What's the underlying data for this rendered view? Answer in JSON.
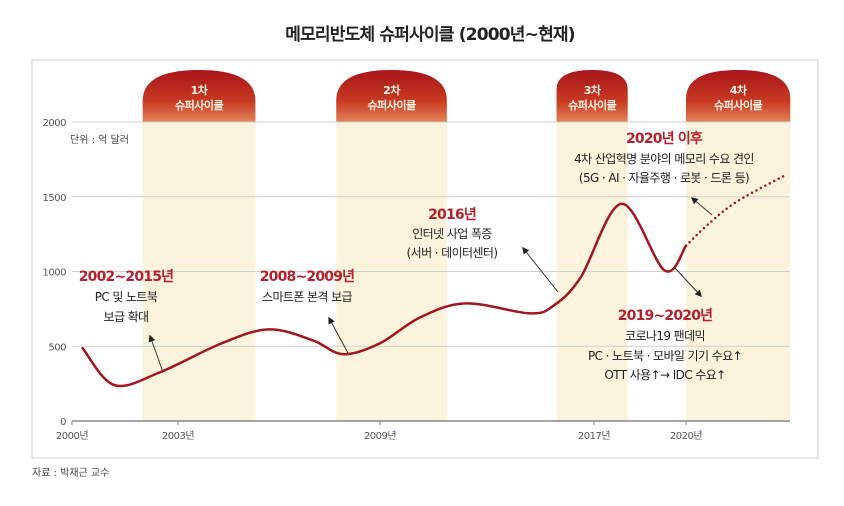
{
  "chart_data": {
    "type": "line",
    "title": "메모리반도체 슈퍼사이클 (2000년~현재)",
    "unit_label": "단위 : 억 달러",
    "source": "자료 : 박재근 교수",
    "ylim": [
      0,
      2000
    ],
    "yticks": [
      "0",
      "500",
      "1000",
      "1500",
      "2000"
    ],
    "xticks": [
      {
        "year": 2000,
        "label": "2000년"
      },
      {
        "year": 2003,
        "label": "2003년"
      },
      {
        "year": 2009,
        "label": "2009년"
      },
      {
        "year": 2017,
        "label": "2017년"
      },
      {
        "year": 2020,
        "label": "2020년"
      }
    ],
    "grid": true,
    "colors": {
      "line": "#a3161f",
      "band": "#fbf3dc",
      "dome": "#b8231d",
      "accent_text": "#b5202a"
    },
    "supercycles": [
      {
        "line1": "1차",
        "line2": "슈퍼사이클",
        "from": 2002.0,
        "to": 2005.3
      },
      {
        "line1": "2차",
        "line2": "슈퍼사이클",
        "from": 2007.7,
        "to": 2011.5
      },
      {
        "line1": "3차",
        "line2": "슈퍼사이클",
        "from": 2015.6,
        "to": 2018.1
      },
      {
        "line1": "4차",
        "line2": "슈퍼사이클",
        "from": 2020.0,
        "to": 2023.4
      }
    ],
    "series": [
      {
        "style": "solid",
        "points": [
          [
            2000.3,
            487
          ],
          [
            2001.2,
            240
          ],
          [
            2002.5,
            327
          ],
          [
            2004.3,
            520
          ],
          [
            2005.7,
            613
          ],
          [
            2007.0,
            540
          ],
          [
            2007.9,
            447
          ],
          [
            2009.0,
            520
          ],
          [
            2010.5,
            693
          ],
          [
            2012.2,
            787
          ],
          [
            2014.6,
            720
          ],
          [
            2015.5,
            773
          ],
          [
            2016.5,
            960
          ],
          [
            2017.9,
            1453
          ],
          [
            2019.3,
            1007
          ],
          [
            2020.0,
            1173
          ]
        ]
      },
      {
        "style": "dotted",
        "points": [
          [
            2020.0,
            1173
          ],
          [
            2020.8,
            1330
          ],
          [
            2021.7,
            1473
          ],
          [
            2023.2,
            1640
          ]
        ]
      }
    ],
    "annotations": [
      {
        "title": "2002~2015년",
        "lines": [
          "PC 및 노트북",
          "보급 확대"
        ]
      },
      {
        "title": "2008~2009년",
        "lines": [
          "스마트폰 본격 보급"
        ]
      },
      {
        "title": "2016년",
        "lines": [
          "인터넷 사업 폭증",
          "(서버 · 데이터센터)"
        ]
      },
      {
        "title": "2020년 이후",
        "lines": [
          "4차 산업혁명 분야의 메모리 수요 견인",
          "(5G · AI · 자율주행 · 로봇 · 드론 등)"
        ]
      },
      {
        "title": "2019~2020년",
        "lines": [
          "코로나19 팬데믹",
          "PC · 노트북 · 모바일 기기 수요↑",
          "OTT 사용↑→ IDC 수요↑"
        ]
      }
    ]
  }
}
